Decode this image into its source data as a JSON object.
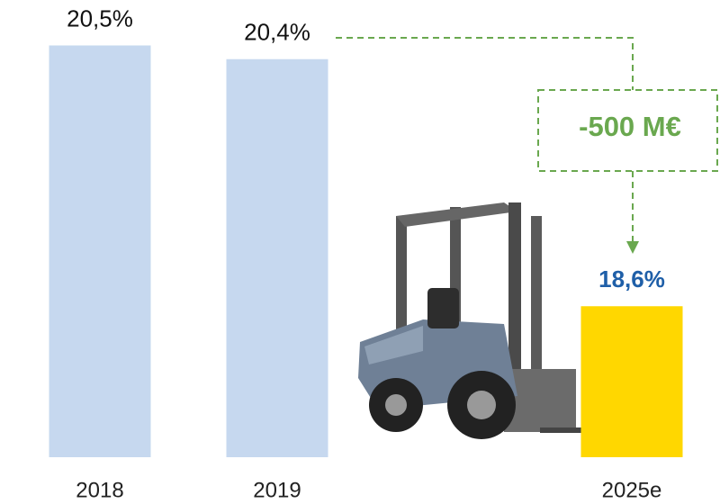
{
  "chart_data": {
    "type": "bar",
    "categories": [
      "2018",
      "2019",
      "2025e"
    ],
    "values": [
      20.5,
      20.4,
      18.6
    ],
    "value_labels": [
      "20,5%",
      "20,4%",
      "18,6%"
    ],
    "colors": [
      "#c6d8ef",
      "#c6d8ef",
      "#ffd700"
    ],
    "value_label_colors": [
      "#111111",
      "#111111",
      "#1f5fa8"
    ],
    "ylim": [
      17.5,
      20.7
    ],
    "annotation": {
      "text": "-500 M€",
      "color": "#6aa84f"
    }
  }
}
